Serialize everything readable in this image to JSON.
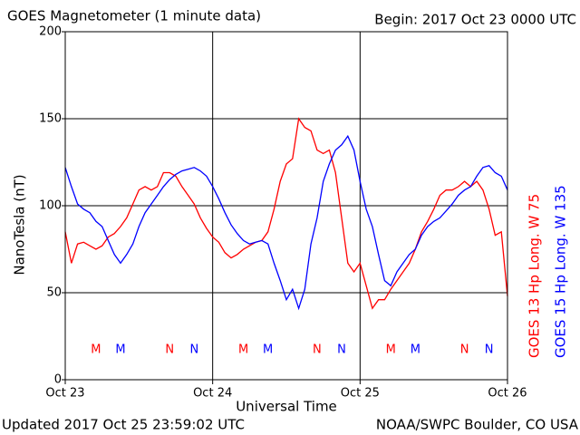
{
  "chart_data": {
    "type": "line",
    "title": "GOES Magnetometer (1 minute data)",
    "subtitle": "Begin:  2017 Oct 23 0000 UTC",
    "y_label": "NanoTesla (nT)",
    "x_label": "Universal Time",
    "footer_left": "Updated 2017 Oct 25 23:59:02 UTC",
    "footer_right": "NOAA/SWPC Boulder, CO USA",
    "xlim": [
      0,
      72
    ],
    "xticks": [
      {
        "value": 0,
        "label": "Oct 23"
      },
      {
        "value": 24,
        "label": "Oct 24"
      },
      {
        "value": 48,
        "label": "Oct 25"
      },
      {
        "value": 72,
        "label": "Oct 26"
      }
    ],
    "ylim": [
      0,
      200
    ],
    "yticks": [
      0,
      50,
      100,
      150,
      200
    ],
    "grid": true,
    "x": [
      0,
      1,
      2,
      3,
      4,
      5,
      6,
      7,
      8,
      9,
      10,
      11,
      12,
      13,
      14,
      15,
      16,
      17,
      18,
      19,
      20,
      21,
      22,
      23,
      24,
      25,
      26,
      27,
      28,
      29,
      30,
      31,
      32,
      33,
      34,
      35,
      36,
      37,
      38,
      39,
      40,
      41,
      42,
      43,
      44,
      45,
      46,
      47,
      48,
      49,
      50,
      51,
      52,
      53,
      54,
      55,
      56,
      57,
      58,
      59,
      60,
      61,
      62,
      63,
      64,
      65,
      66,
      67,
      68,
      69,
      70,
      71,
      72
    ],
    "series": [
      {
        "name": "GOES 13 Hp  Long. W 75",
        "color": "#ff0000",
        "values": [
          85,
          67,
          78,
          79,
          77,
          75,
          77,
          82,
          84,
          88,
          93,
          101,
          109,
          111,
          109,
          111,
          119,
          119,
          117,
          111,
          106,
          101,
          93,
          87,
          82,
          79,
          73,
          70,
          72,
          75,
          77,
          79,
          80,
          85,
          98,
          114,
          124,
          127,
          150,
          145,
          143,
          132,
          130,
          132,
          119,
          93,
          67,
          62,
          67,
          54,
          41,
          46,
          46,
          52,
          57,
          62,
          67,
          75,
          85,
          91,
          98,
          106,
          109,
          109,
          111,
          114,
          111,
          114,
          109,
          98,
          83,
          85,
          48
        ]
      },
      {
        "name": "GOES 15 Hp  Long. W 135",
        "color": "#0000ff",
        "values": [
          122,
          111,
          101,
          98,
          96,
          91,
          88,
          80,
          72,
          67,
          72,
          78,
          88,
          96,
          101,
          106,
          111,
          115,
          118,
          120,
          121,
          122,
          120,
          117,
          111,
          104,
          96,
          89,
          84,
          80,
          78,
          79,
          80,
          78,
          67,
          57,
          46,
          52,
          41,
          52,
          78,
          93,
          114,
          124,
          132,
          135,
          140,
          132,
          114,
          98,
          88,
          72,
          57,
          54,
          62,
          67,
          72,
          75,
          83,
          88,
          91,
          93,
          97,
          101,
          106,
          109,
          111,
          117,
          122,
          123,
          119,
          117,
          109
        ]
      }
    ],
    "local_time_markers": [
      {
        "label": "M",
        "x": 5,
        "series": 0
      },
      {
        "label": "M",
        "x": 9,
        "series": 1
      },
      {
        "label": "N",
        "x": 17,
        "series": 0
      },
      {
        "label": "N",
        "x": 21,
        "series": 1
      },
      {
        "label": "M",
        "x": 29,
        "series": 0
      },
      {
        "label": "M",
        "x": 33,
        "series": 1
      },
      {
        "label": "N",
        "x": 41,
        "series": 0
      },
      {
        "label": "N",
        "x": 45,
        "series": 1
      },
      {
        "label": "M",
        "x": 53,
        "series": 0
      },
      {
        "label": "M",
        "x": 57,
        "series": 1
      },
      {
        "label": "N",
        "x": 65,
        "series": 0
      },
      {
        "label": "N",
        "x": 69,
        "series": 1
      }
    ]
  }
}
